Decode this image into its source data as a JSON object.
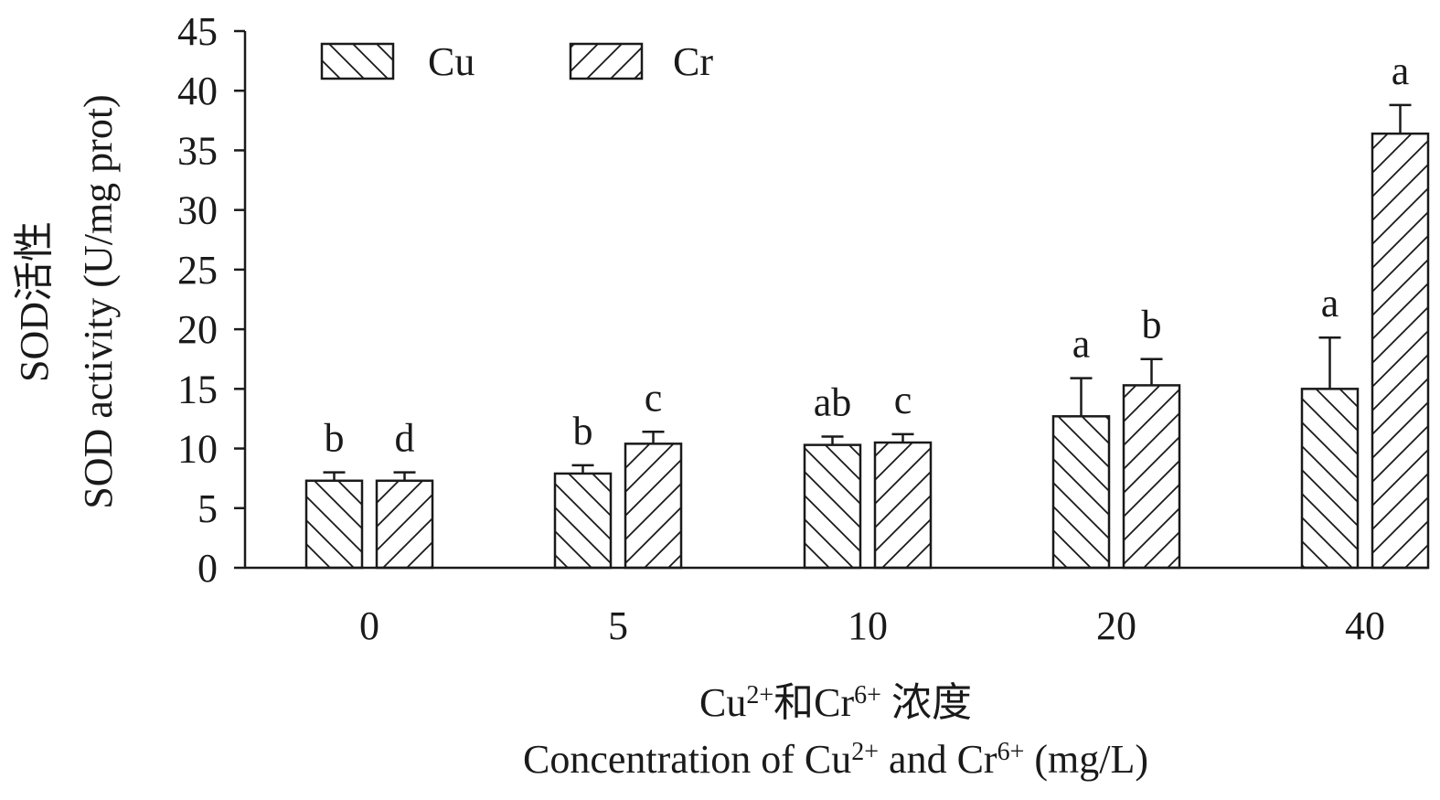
{
  "chart_data": {
    "type": "bar",
    "ylabel_cn": "SOD活性",
    "ylabel": "SOD activity (U/mg prot)",
    "xlabel_cn": [
      "Cu",
      "2+",
      "和Cr",
      "6+",
      " 浓度"
    ],
    "xlabel": [
      "Concentration of Cu",
      "2+",
      " and Cr",
      "6+",
      " (mg/L)"
    ],
    "categories": [
      "0",
      "5",
      "10",
      "20",
      "40"
    ],
    "ylim": [
      0,
      45
    ],
    "yticks": [
      "0",
      "5",
      "10",
      "15",
      "20",
      "25",
      "30",
      "35",
      "40",
      "45"
    ],
    "legend_position": "top-left",
    "series": [
      {
        "name": "Cu",
        "hatch": "backslash",
        "values": [
          7.3,
          7.9,
          10.3,
          12.7,
          15.0
        ],
        "errors": [
          0.7,
          0.7,
          0.7,
          3.2,
          4.3
        ],
        "labels": [
          "b",
          "b",
          "ab",
          "a",
          "a"
        ]
      },
      {
        "name": "Cr",
        "hatch": "slash",
        "values": [
          7.3,
          10.4,
          10.5,
          15.3,
          36.4
        ],
        "errors": [
          0.7,
          1.0,
          0.7,
          2.2,
          2.4
        ],
        "labels": [
          "d",
          "c",
          "c",
          "b",
          "a"
        ]
      }
    ],
    "colors": {
      "bar_fill": "#ffffff",
      "stroke": "#1a1a1a"
    }
  }
}
